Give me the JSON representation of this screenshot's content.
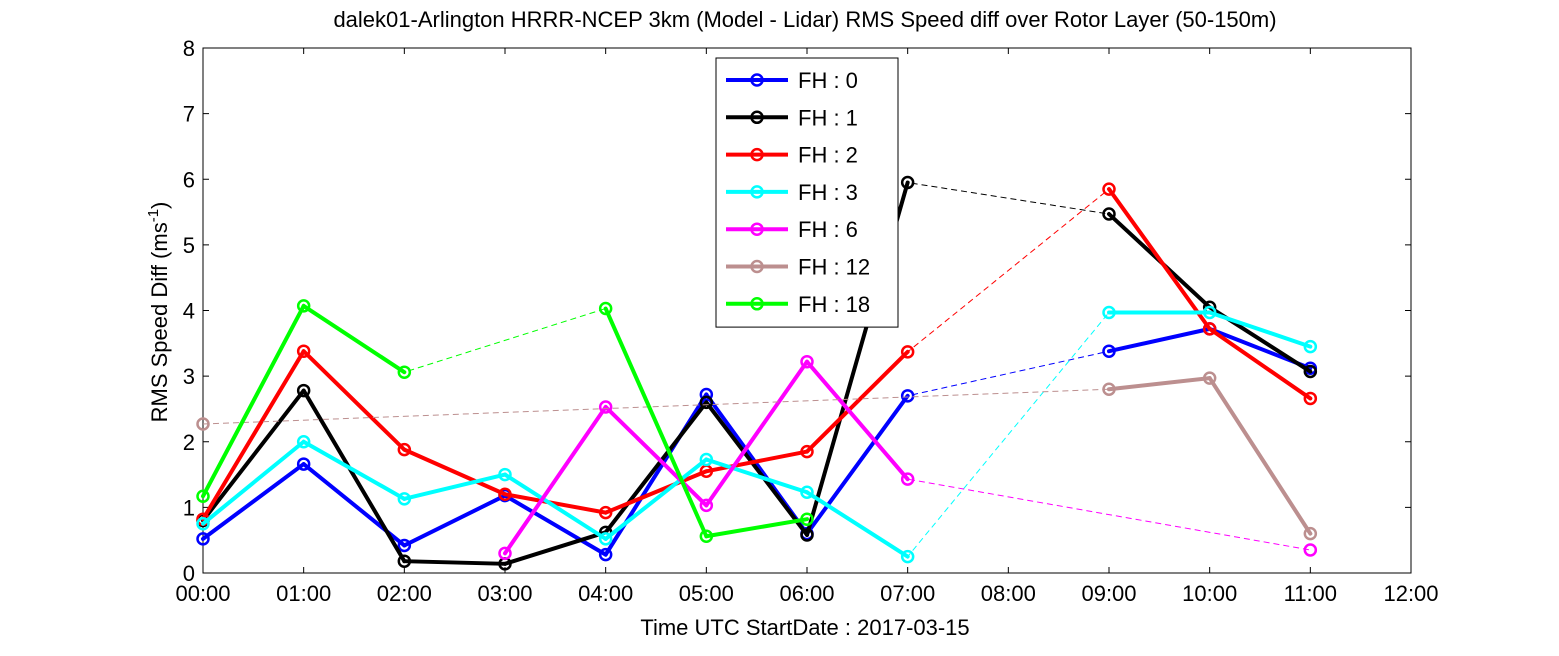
{
  "chart_data": {
    "type": "line",
    "title": "dalek01-Arlington HRRR-NCEP 3km (Model - Lidar) RMS Speed diff over Rotor Layer (50-150m)",
    "xlabel": "Time UTC    StartDate : 2017-03-15",
    "ylabel": "RMS Speed Diff (ms",
    "ylabel_sup": "-1",
    "ylabel_suffix": ")",
    "xlim": [
      0,
      12
    ],
    "ylim": [
      0,
      8
    ],
    "x_ticks": [
      0,
      1,
      2,
      3,
      4,
      5,
      6,
      7,
      8,
      9,
      10,
      11,
      12
    ],
    "x_tick_labels": [
      "00:00",
      "01:00",
      "02:00",
      "03:00",
      "04:00",
      "05:00",
      "06:00",
      "07:00",
      "08:00",
      "09:00",
      "10:00",
      "11:00",
      "12:00"
    ],
    "y_ticks": [
      0,
      1,
      2,
      3,
      4,
      5,
      6,
      7,
      8
    ],
    "y_tick_labels": [
      "0",
      "1",
      "2",
      "3",
      "4",
      "5",
      "6",
      "7",
      "8"
    ],
    "grid": false,
    "legend_position": "top-center",
    "series": [
      {
        "name": "FH : 0",
        "color": "#0000ff",
        "points": [
          [
            0,
            0.52
          ],
          [
            1,
            1.66
          ],
          [
            2,
            0.42
          ],
          [
            3,
            1.18
          ],
          [
            4,
            0.28
          ],
          [
            5,
            2.72
          ],
          [
            6,
            0.6
          ],
          [
            7,
            2.7
          ],
          [
            9,
            3.38
          ],
          [
            10,
            3.72
          ],
          [
            11,
            3.12
          ]
        ]
      },
      {
        "name": "FH : 1",
        "color": "#000000",
        "points": [
          [
            0,
            0.8
          ],
          [
            1,
            2.78
          ],
          [
            2,
            0.18
          ],
          [
            3,
            0.14
          ],
          [
            4,
            0.62
          ],
          [
            5,
            2.6
          ],
          [
            6,
            0.58
          ],
          [
            7,
            5.95
          ],
          [
            9,
            5.47
          ],
          [
            10,
            4.05
          ],
          [
            11,
            3.07
          ]
        ]
      },
      {
        "name": "FH : 2",
        "color": "#ff0000",
        "points": [
          [
            0,
            0.82
          ],
          [
            1,
            3.38
          ],
          [
            2,
            1.88
          ],
          [
            3,
            1.2
          ],
          [
            4,
            0.92
          ],
          [
            5,
            1.55
          ],
          [
            6,
            1.85
          ],
          [
            7,
            3.37
          ],
          [
            9,
            5.85
          ],
          [
            10,
            3.72
          ],
          [
            11,
            2.66
          ]
        ]
      },
      {
        "name": "FH : 3",
        "color": "#00ffff",
        "points": [
          [
            0,
            0.75
          ],
          [
            1,
            2.0
          ],
          [
            2,
            1.13
          ],
          [
            3,
            1.5
          ],
          [
            4,
            0.52
          ],
          [
            5,
            1.73
          ],
          [
            6,
            1.23
          ],
          [
            7,
            0.25
          ],
          [
            9,
            3.97
          ],
          [
            10,
            3.97
          ],
          [
            11,
            3.45
          ]
        ]
      },
      {
        "name": "FH : 6",
        "color": "#ff00ff",
        "points": [
          [
            3,
            0.3
          ],
          [
            4,
            2.53
          ],
          [
            5,
            1.03
          ],
          [
            6,
            3.22
          ],
          [
            7,
            1.43
          ],
          [
            11,
            0.35
          ]
        ]
      },
      {
        "name": "FH : 12",
        "color": "#bc8f8f",
        "points": [
          [
            0,
            2.27
          ],
          [
            9,
            2.8
          ],
          [
            10,
            2.97
          ],
          [
            11,
            0.6
          ]
        ]
      },
      {
        "name": "FH : 18",
        "color": "#00ff00",
        "points": [
          [
            0,
            1.17
          ],
          [
            1,
            4.07
          ],
          [
            2,
            3.06
          ],
          [
            4,
            4.03
          ],
          [
            5,
            0.56
          ],
          [
            6,
            0.82
          ]
        ]
      }
    ]
  }
}
